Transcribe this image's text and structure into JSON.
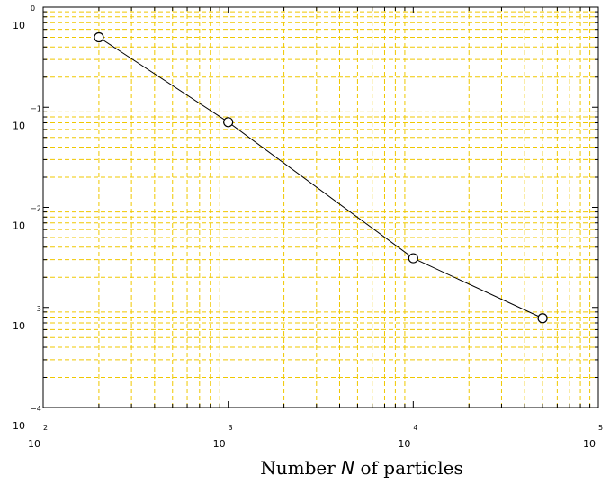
{
  "chart_data": {
    "type": "line",
    "title": "",
    "xlabel": {
      "before": "Number ",
      "var": "N",
      "after": " of particles"
    },
    "ylabel": "",
    "x_scale": "log",
    "y_scale": "log",
    "xlim": [
      100,
      100000
    ],
    "ylim": [
      0.0001,
      1
    ],
    "grid": true,
    "x_ticks": [
      {
        "value": 100,
        "base": "10",
        "exp": "2"
      },
      {
        "value": 1000,
        "base": "10",
        "exp": "3"
      },
      {
        "value": 10000,
        "base": "10",
        "exp": "4"
      },
      {
        "value": 100000,
        "base": "10",
        "exp": "5"
      }
    ],
    "y_ticks": [
      {
        "value": 1,
        "base": "10",
        "exp": "0"
      },
      {
        "value": 0.1,
        "base": "10",
        "exp": "−1"
      },
      {
        "value": 0.01,
        "base": "10",
        "exp": "−2"
      },
      {
        "value": 0.001,
        "base": "10",
        "exp": "−3"
      },
      {
        "value": 0.0001,
        "base": "10",
        "exp": "−4"
      }
    ],
    "series": [
      {
        "x": [
          200,
          1000,
          10000,
          50000
        ],
        "y": [
          0.5,
          0.071,
          0.0031,
          0.00078
        ],
        "line_color": "#000000",
        "marker": "circle"
      }
    ],
    "grid_color": "#f0c800"
  }
}
